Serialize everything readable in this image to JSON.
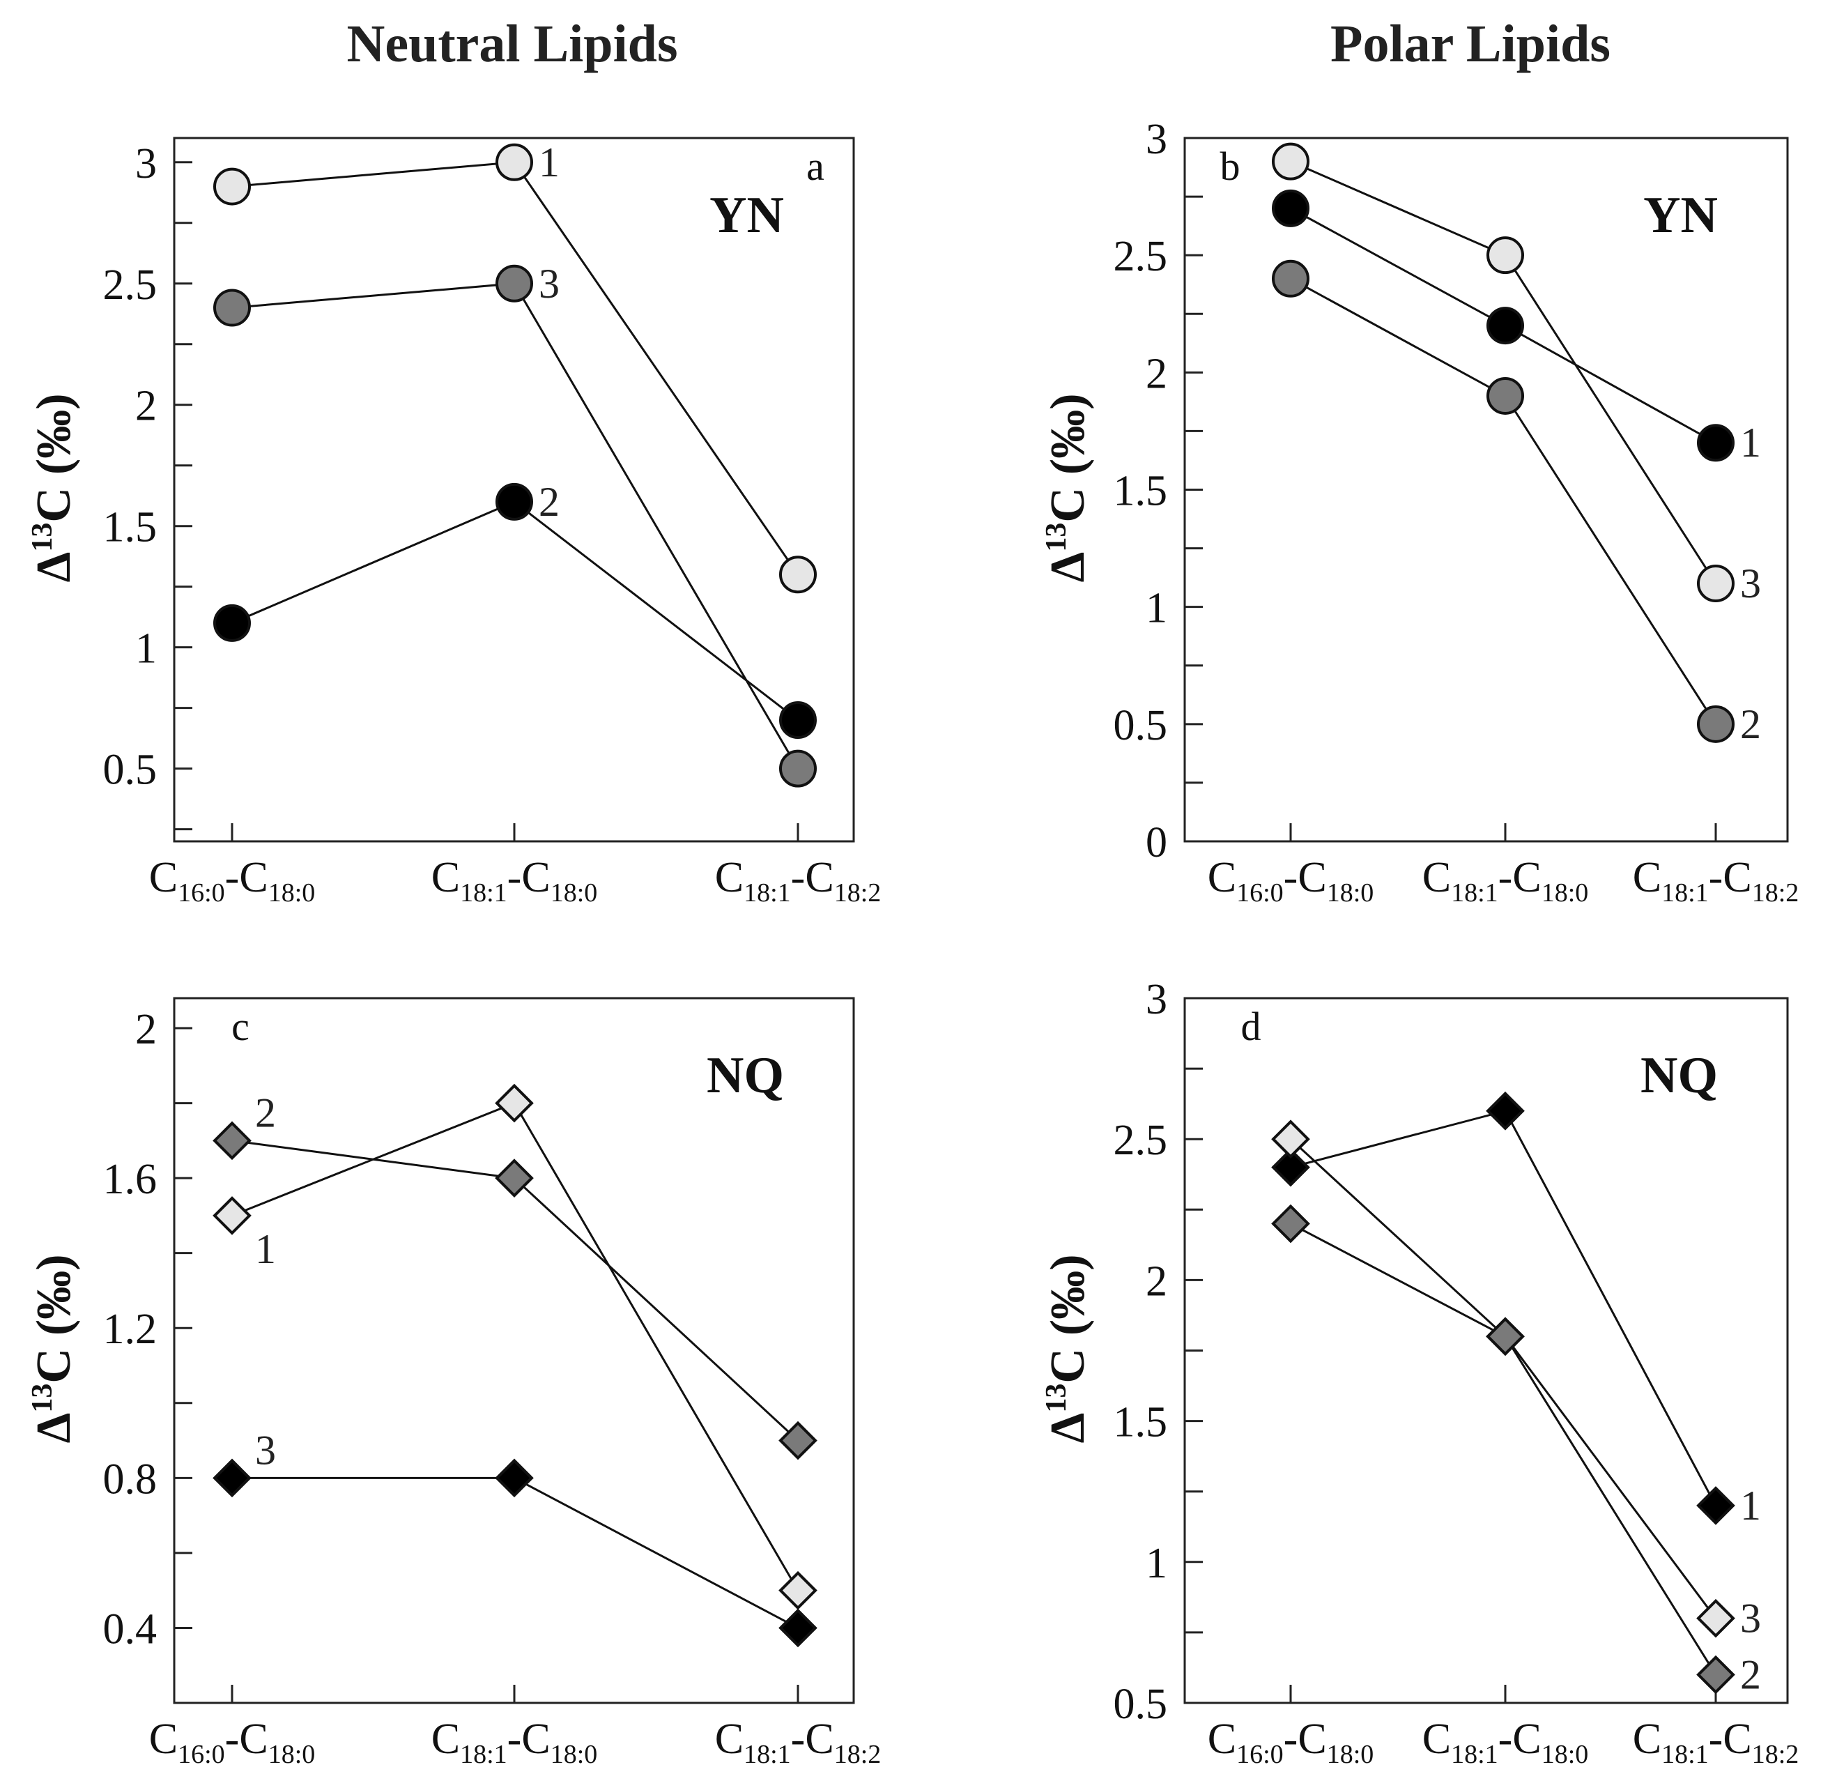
{
  "column_titles": [
    "Neutral Lipids",
    "Polar Lipids"
  ],
  "chart_data": [
    {
      "type": "line",
      "panel": "a",
      "site": "YN",
      "column": "Neutral Lipids",
      "ylabel": "Δ13C (‰)",
      "ylabel_delta": "Δ",
      "ylabel_sup": "13",
      "ylabel_main": "C",
      "ylabel_unit": "(‰)",
      "ylim": [
        0.2,
        3.1
      ],
      "yticks": [
        0.5,
        1,
        1.5,
        2,
        2.5,
        3
      ],
      "ytick_labels": [
        "0.5",
        "1",
        "1.5",
        "2",
        "2.5",
        "3"
      ],
      "categories": [
        {
          "main1": "C",
          "sub1": "16:0",
          "dash": "-",
          "main2": "C",
          "sub2": "18:0"
        },
        {
          "main1": "C",
          "sub1": "18:1",
          "dash": "-",
          "main2": "C",
          "sub2": "18:0"
        },
        {
          "main1": "C",
          "sub1": "18:1",
          "dash": "-",
          "main2": "C",
          "sub2": "18:2"
        }
      ],
      "marker": "circle",
      "series": [
        {
          "label": "1",
          "values": [
            2.9,
            3.0,
            1.3
          ],
          "fill": "#e6e6e6",
          "label_at": 1
        },
        {
          "label": "3",
          "values": [
            2.4,
            2.5,
            0.5
          ],
          "fill": "#7a7a7a",
          "label_at": 1
        },
        {
          "label": "2",
          "values": [
            1.1,
            1.6,
            0.7
          ],
          "fill": "#000000",
          "label_at": 1
        }
      ]
    },
    {
      "type": "line",
      "panel": "b",
      "site": "YN",
      "column": "Polar Lipids",
      "ylabel": "Δ13C (‰)",
      "ylabel_delta": "Δ",
      "ylabel_sup": "13",
      "ylabel_main": "C",
      "ylabel_unit": "(‰)",
      "ylim": [
        0,
        3
      ],
      "yticks": [
        0,
        0.5,
        1,
        1.5,
        2,
        2.5,
        3
      ],
      "ytick_labels": [
        "0",
        "0.5",
        "1",
        "1.5",
        "2",
        "2.5",
        "3"
      ],
      "categories": [
        {
          "main1": "C",
          "sub1": "16:0",
          "dash": "-",
          "main2": "C",
          "sub2": "18:0"
        },
        {
          "main1": "C",
          "sub1": "18:1",
          "dash": "-",
          "main2": "C",
          "sub2": "18:0"
        },
        {
          "main1": "C",
          "sub1": "18:1",
          "dash": "-",
          "main2": "C",
          "sub2": "18:2"
        }
      ],
      "marker": "circle",
      "series": [
        {
          "label": "3",
          "values": [
            2.9,
            2.5,
            1.1
          ],
          "fill": "#e6e6e6",
          "label_at": 2
        },
        {
          "label": "1",
          "values": [
            2.7,
            2.2,
            1.7
          ],
          "fill": "#000000",
          "label_at": 2
        },
        {
          "label": "2",
          "values": [
            2.4,
            1.9,
            0.5
          ],
          "fill": "#7a7a7a",
          "label_at": 2
        }
      ]
    },
    {
      "type": "line",
      "panel": "c",
      "site": "NQ",
      "column": "Neutral Lipids",
      "ylabel": "Δ13C (‰)",
      "ylabel_delta": "Δ",
      "ylabel_sup": "13",
      "ylabel_main": "C",
      "ylabel_unit": "(‰)",
      "ylim": [
        0.2,
        2.08
      ],
      "yticks": [
        0.4,
        0.8,
        1.2,
        1.6,
        2
      ],
      "ytick_labels": [
        "0.4",
        "0.8",
        "1.2",
        "1.6",
        "2"
      ],
      "categories": [
        {
          "main1": "C",
          "sub1": "16:0",
          "dash": "-",
          "main2": "C",
          "sub2": "18:0"
        },
        {
          "main1": "C",
          "sub1": "18:1",
          "dash": "-",
          "main2": "C",
          "sub2": "18:0"
        },
        {
          "main1": "C",
          "sub1": "18:1",
          "dash": "-",
          "main2": "C",
          "sub2": "18:2"
        }
      ],
      "marker": "diamond",
      "series": [
        {
          "label": "2",
          "values": [
            1.7,
            1.6,
            0.9
          ],
          "fill": "#7a7a7a",
          "label_at": 0,
          "label_pos": "above"
        },
        {
          "label": "1",
          "values": [
            1.5,
            1.8,
            0.5
          ],
          "fill": "#e6e6e6",
          "label_at": 0,
          "label_pos": "below"
        },
        {
          "label": "3",
          "values": [
            0.8,
            0.8,
            0.4
          ],
          "fill": "#000000",
          "label_at": 0,
          "label_pos": "above"
        }
      ]
    },
    {
      "type": "line",
      "panel": "d",
      "site": "NQ",
      "column": "Polar Lipids",
      "ylabel": "Δ13C (‰)",
      "ylabel_delta": "Δ",
      "ylabel_sup": "13",
      "ylabel_main": "C",
      "ylabel_unit": "(‰)",
      "ylim": [
        0.5,
        3
      ],
      "yticks": [
        0.5,
        1,
        1.5,
        2,
        2.5,
        3
      ],
      "ytick_labels": [
        "0.5",
        "1",
        "1.5",
        "2",
        "2.5",
        "3"
      ],
      "categories": [
        {
          "main1": "C",
          "sub1": "16:0",
          "dash": "-",
          "main2": "C",
          "sub2": "18:0"
        },
        {
          "main1": "C",
          "sub1": "18:1",
          "dash": "-",
          "main2": "C",
          "sub2": "18:0"
        },
        {
          "main1": "C",
          "sub1": "18:1",
          "dash": "-",
          "main2": "C",
          "sub2": "18:2"
        }
      ],
      "marker": "diamond",
      "series": [
        {
          "label": "1",
          "values": [
            2.4,
            2.6,
            1.2
          ],
          "fill": "#000000",
          "label_at": 2
        },
        {
          "label": "3",
          "values": [
            2.5,
            1.8,
            0.8
          ],
          "fill": "#e6e6e6",
          "label_at": 2
        },
        {
          "label": "2",
          "values": [
            2.2,
            1.8,
            0.6
          ],
          "fill": "#7a7a7a",
          "label_at": 2
        }
      ]
    }
  ]
}
